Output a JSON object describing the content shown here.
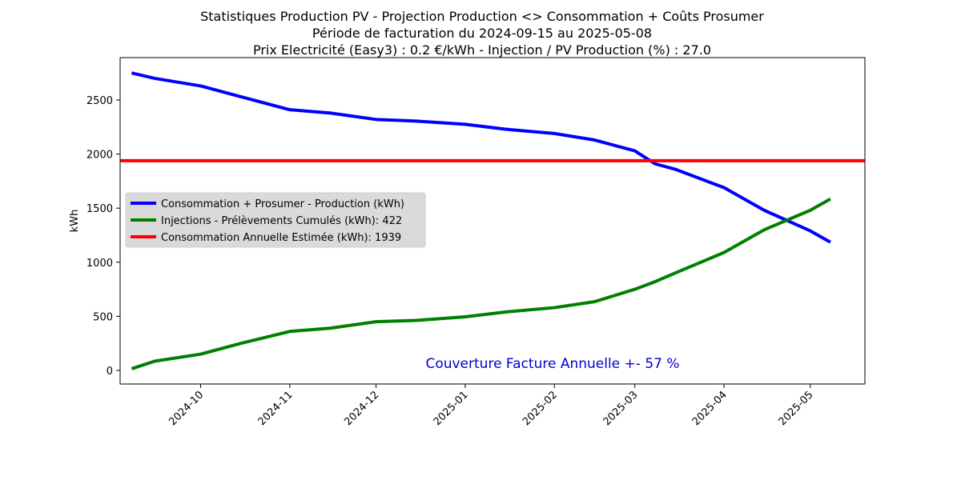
{
  "chart_data": {
    "type": "line",
    "title": [
      "Statistiques Production PV - Projection Production <> Consommation + Coûts Prosumer",
      "Période de facturation du 2024-09-15 au 2025-05-08",
      "Prix Electricité (Easy3) : 0.2 €/kWh - Injection / PV Production (%) : 27.0"
    ],
    "ylabel": "kWh",
    "x": [
      "2024-09-07",
      "2024-09-15",
      "2024-10-01",
      "2024-10-15",
      "2024-11-01",
      "2024-11-15",
      "2024-12-01",
      "2024-12-15",
      "2025-01-01",
      "2025-01-15",
      "2025-02-01",
      "2025-02-15",
      "2025-03-01",
      "2025-03-08",
      "2025-03-15",
      "2025-04-01",
      "2025-04-15",
      "2025-05-01",
      "2025-05-08"
    ],
    "series": [
      {
        "name": "Consommation + Prosumer - Production (kWh)",
        "color": "#0000ff",
        "values": [
          2750,
          2700,
          2630,
          2530,
          2410,
          2380,
          2320,
          2305,
          2275,
          2230,
          2190,
          2130,
          2030,
          1910,
          1860,
          1690,
          1480,
          1290,
          1185
        ]
      },
      {
        "name": "Injections - Prélèvements Cumulés (kWh): 422",
        "color": "#008000",
        "values": [
          15,
          85,
          150,
          250,
          360,
          390,
          450,
          462,
          495,
          540,
          580,
          635,
          750,
          820,
          900,
          1090,
          1300,
          1480,
          1585
        ]
      }
    ],
    "hline": {
      "name": "Consommation Annuelle Estimée (kWh): 1939",
      "color": "#ff0000",
      "value": 1939
    },
    "annotation": {
      "text": "Couverture Facture Annuelle +- 57 %",
      "color": "#0000cd"
    },
    "xlim": [
      "2024-09-03",
      "2025-05-20"
    ],
    "xticks": [
      "2024-10",
      "2024-11",
      "2024-12",
      "2025-01",
      "2025-02",
      "2025-03",
      "2025-04",
      "2025-05"
    ],
    "ylim": [
      -126,
      2892
    ],
    "yticks": [
      0,
      500,
      1000,
      1500,
      2000,
      2500
    ],
    "legend": "center-left"
  }
}
